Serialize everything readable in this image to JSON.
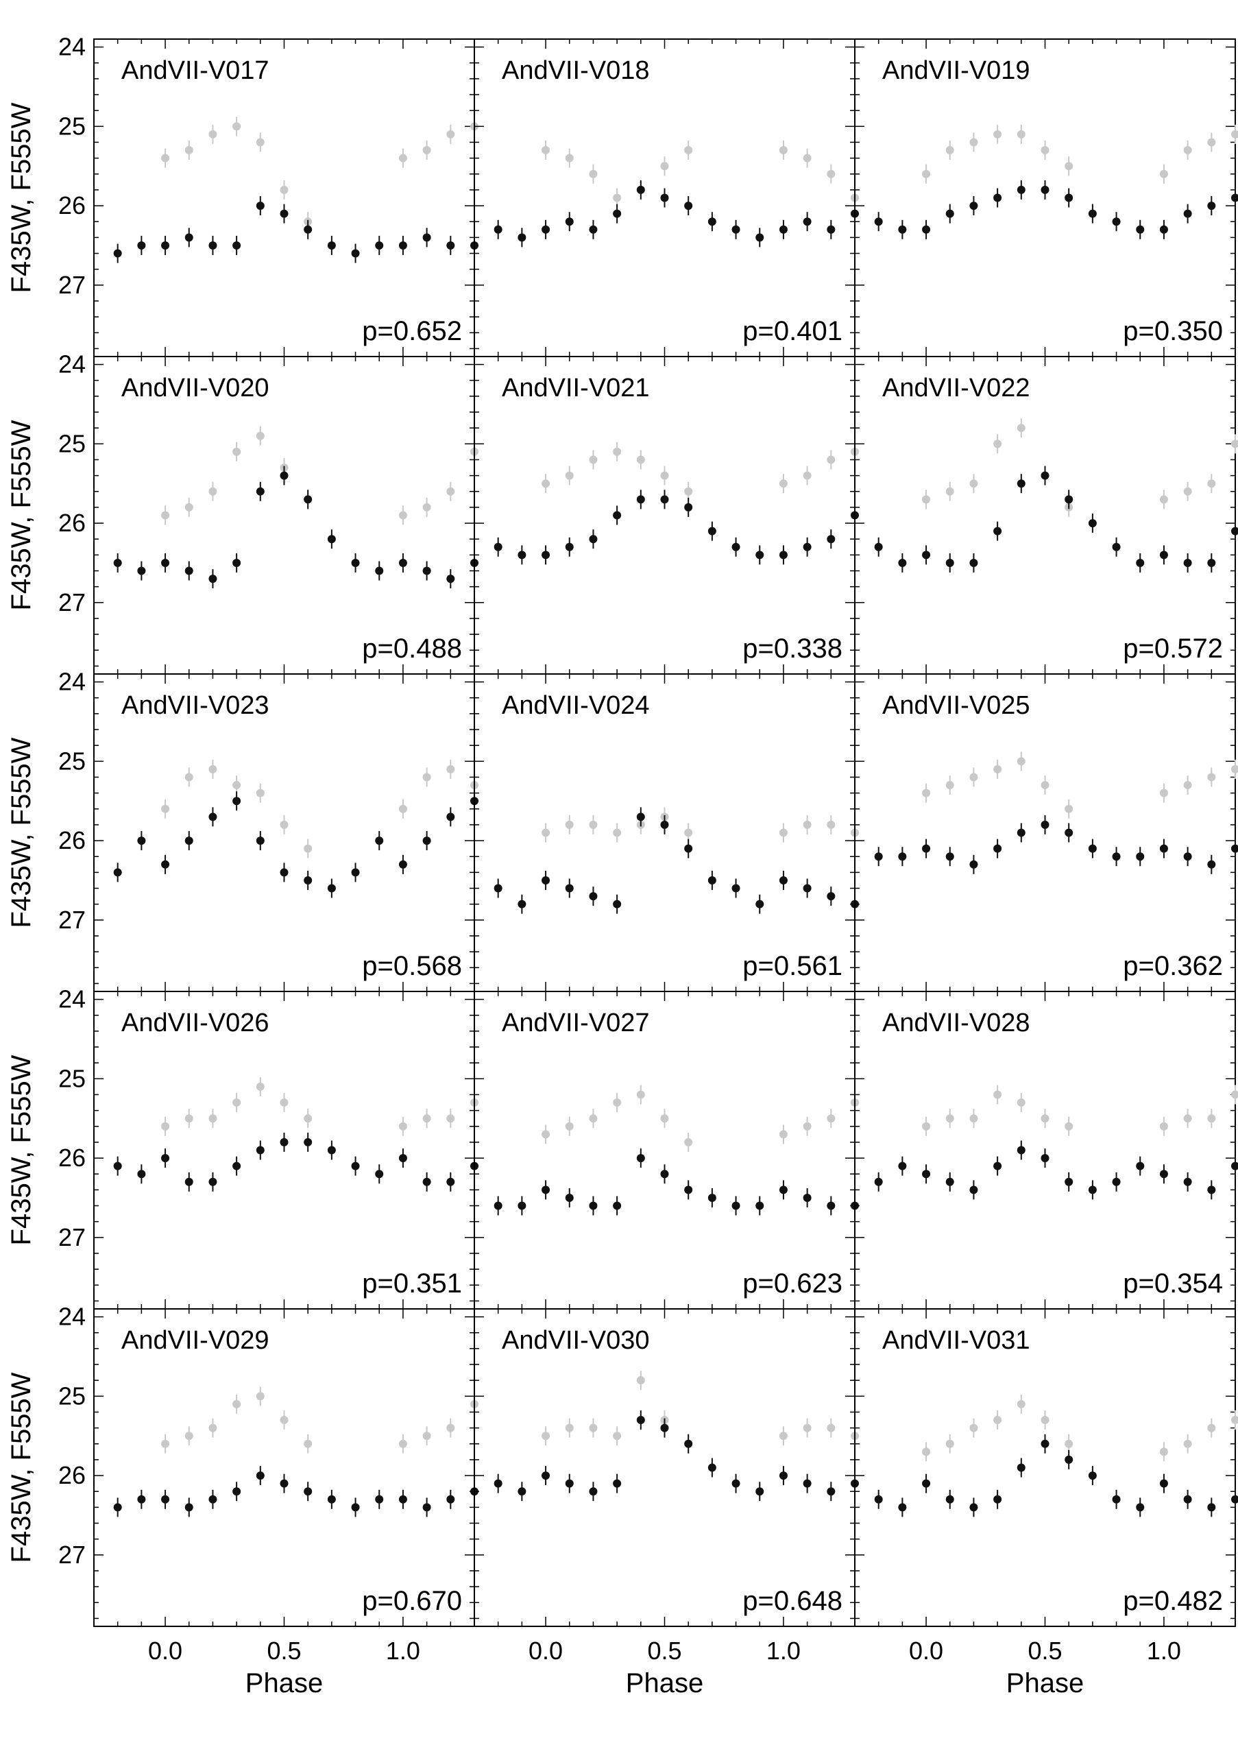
{
  "figure": {
    "y_axis_label": "F435W, F555W",
    "x_axis_label": "Phase",
    "x_tick_labels": [
      "0.0",
      "0.5",
      "1.0"
    ],
    "y_tick_labels": [
      "24",
      "25",
      "26",
      "27"
    ],
    "colors": {
      "f435w": "#c8c8c8",
      "f555w": "#111111",
      "frame": "#000000"
    }
  },
  "chart_data": {
    "type": "scatter",
    "description_of_series": [
      "F435W (grey points)",
      "F555W (black points)"
    ],
    "xlim": [
      -0.3,
      1.3
    ],
    "ylim": [
      27.9,
      23.9
    ],
    "y_inverted": true,
    "grid": false,
    "layout": "5 rows x 3 columns of light-curve panels",
    "panels": [
      {
        "star": "AndVII-V017",
        "period_label": "p=0.652",
        "period": 0.652,
        "f435w": {
          "phase": [
            0.0,
            0.1,
            0.2,
            0.3,
            0.4,
            0.5,
            0.6
          ],
          "mag": [
            25.4,
            25.3,
            25.1,
            25.0,
            25.2,
            25.8,
            26.2
          ]
        },
        "f555w": {
          "phase": [
            0.0,
            0.1,
            0.2,
            0.3,
            0.4,
            0.5,
            0.6,
            0.7,
            0.8,
            0.9
          ],
          "mag": [
            26.5,
            26.4,
            26.5,
            26.5,
            26.0,
            26.1,
            26.3,
            26.5,
            26.6,
            26.5
          ]
        }
      },
      {
        "star": "AndVII-V018",
        "period_label": "p=0.401",
        "period": 0.401,
        "f435w": {
          "phase": [
            0.0,
            0.1,
            0.2,
            0.3,
            0.4,
            0.5,
            0.6
          ],
          "mag": [
            25.3,
            25.4,
            25.6,
            25.9,
            25.8,
            25.5,
            25.3
          ]
        },
        "f555w": {
          "phase": [
            0.0,
            0.1,
            0.2,
            0.3,
            0.4,
            0.5,
            0.6,
            0.7,
            0.8,
            0.9
          ],
          "mag": [
            26.3,
            26.2,
            26.3,
            26.1,
            25.8,
            25.9,
            26.0,
            26.2,
            26.3,
            26.4
          ]
        }
      },
      {
        "star": "AndVII-V019",
        "period_label": "p=0.350",
        "period": 0.35,
        "f435w": {
          "phase": [
            0.0,
            0.1,
            0.2,
            0.3,
            0.4,
            0.5,
            0.6
          ],
          "mag": [
            25.6,
            25.3,
            25.2,
            25.1,
            25.1,
            25.3,
            25.5
          ]
        },
        "f555w": {
          "phase": [
            0.0,
            0.1,
            0.2,
            0.3,
            0.4,
            0.5,
            0.6,
            0.7,
            0.8,
            0.9
          ],
          "mag": [
            26.3,
            26.1,
            26.0,
            25.9,
            25.8,
            25.8,
            25.9,
            26.1,
            26.2,
            26.3
          ]
        }
      },
      {
        "star": "AndVII-V020",
        "period_label": "p=0.488",
        "period": 0.488,
        "f435w": {
          "phase": [
            0.0,
            0.1,
            0.2,
            0.3,
            0.4,
            0.5,
            0.6
          ],
          "mag": [
            25.9,
            25.8,
            25.6,
            25.1,
            24.9,
            25.3,
            25.7
          ]
        },
        "f555w": {
          "phase": [
            0.0,
            0.1,
            0.2,
            0.3,
            0.4,
            0.5,
            0.6,
            0.7,
            0.8,
            0.9
          ],
          "mag": [
            26.5,
            26.6,
            26.7,
            26.5,
            25.6,
            25.4,
            25.7,
            26.2,
            26.5,
            26.6
          ]
        }
      },
      {
        "star": "AndVII-V021",
        "period_label": "p=0.338",
        "period": 0.338,
        "f435w": {
          "phase": [
            0.0,
            0.1,
            0.2,
            0.3,
            0.4,
            0.5,
            0.6
          ],
          "mag": [
            25.5,
            25.4,
            25.2,
            25.1,
            25.2,
            25.4,
            25.6
          ]
        },
        "f555w": {
          "phase": [
            0.0,
            0.1,
            0.2,
            0.3,
            0.4,
            0.5,
            0.6,
            0.7,
            0.8,
            0.9
          ],
          "mag": [
            26.4,
            26.3,
            26.2,
            25.9,
            25.7,
            25.7,
            25.8,
            26.1,
            26.3,
            26.4
          ]
        }
      },
      {
        "star": "AndVII-V022",
        "period_label": "p=0.572",
        "period": 0.572,
        "f435w": {
          "phase": [
            0.0,
            0.1,
            0.2,
            0.3,
            0.4,
            0.5,
            0.6
          ],
          "mag": [
            25.7,
            25.6,
            25.5,
            25.0,
            24.8,
            25.4,
            25.8
          ]
        },
        "f555w": {
          "phase": [
            0.0,
            0.1,
            0.2,
            0.3,
            0.4,
            0.5,
            0.6,
            0.7,
            0.8,
            0.9
          ],
          "mag": [
            26.4,
            26.5,
            26.5,
            26.1,
            25.5,
            25.4,
            25.7,
            26.0,
            26.3,
            26.5
          ]
        }
      },
      {
        "star": "AndVII-V023",
        "period_label": "p=0.568",
        "period": 0.568,
        "f435w": {
          "phase": [
            0.0,
            0.1,
            0.2,
            0.3,
            0.4,
            0.5,
            0.6
          ],
          "mag": [
            25.6,
            25.2,
            25.1,
            25.3,
            25.4,
            25.8,
            26.1
          ]
        },
        "f555w": {
          "phase": [
            0.0,
            0.1,
            0.2,
            0.3,
            0.4,
            0.5,
            0.6,
            0.7,
            0.8,
            0.9
          ],
          "mag": [
            26.3,
            26.0,
            25.7,
            25.5,
            26.0,
            26.4,
            26.5,
            26.6,
            26.4,
            26.0
          ]
        }
      },
      {
        "star": "AndVII-V024",
        "period_label": "p=0.561",
        "period": 0.561,
        "f435w": {
          "phase": [
            0.0,
            0.1,
            0.2,
            0.3,
            0.4,
            0.5,
            0.6
          ],
          "mag": [
            25.9,
            25.8,
            25.8,
            25.9,
            25.8,
            25.7,
            25.9
          ]
        },
        "f555w": {
          "phase": [
            0.0,
            0.1,
            0.2,
            0.3,
            0.4,
            0.5,
            0.6,
            0.7,
            0.8,
            0.9
          ],
          "mag": [
            26.5,
            26.6,
            26.7,
            26.8,
            25.7,
            25.8,
            26.1,
            26.5,
            26.6,
            26.8
          ]
        }
      },
      {
        "star": "AndVII-V025",
        "period_label": "p=0.362",
        "period": 0.362,
        "f435w": {
          "phase": [
            0.0,
            0.1,
            0.2,
            0.3,
            0.4,
            0.5,
            0.6
          ],
          "mag": [
            25.4,
            25.3,
            25.2,
            25.1,
            25.0,
            25.3,
            25.6
          ]
        },
        "f555w": {
          "phase": [
            0.0,
            0.1,
            0.2,
            0.3,
            0.4,
            0.5,
            0.6,
            0.7,
            0.8,
            0.9
          ],
          "mag": [
            26.1,
            26.2,
            26.3,
            26.1,
            25.9,
            25.8,
            25.9,
            26.1,
            26.2,
            26.2
          ]
        }
      },
      {
        "star": "AndVII-V026",
        "period_label": "p=0.351",
        "period": 0.351,
        "f435w": {
          "phase": [
            0.0,
            0.1,
            0.2,
            0.3,
            0.4,
            0.5,
            0.6
          ],
          "mag": [
            25.6,
            25.5,
            25.5,
            25.3,
            25.1,
            25.3,
            25.5
          ]
        },
        "f555w": {
          "phase": [
            0.0,
            0.1,
            0.2,
            0.3,
            0.4,
            0.5,
            0.6,
            0.7,
            0.8,
            0.9
          ],
          "mag": [
            26.0,
            26.3,
            26.3,
            26.1,
            25.9,
            25.8,
            25.8,
            25.9,
            26.1,
            26.2
          ]
        }
      },
      {
        "star": "AndVII-V027",
        "period_label": "p=0.623",
        "period": 0.623,
        "f435w": {
          "phase": [
            0.0,
            0.1,
            0.2,
            0.3,
            0.4,
            0.5,
            0.6
          ],
          "mag": [
            25.7,
            25.6,
            25.5,
            25.3,
            25.2,
            25.5,
            25.8
          ]
        },
        "f555w": {
          "phase": [
            0.0,
            0.1,
            0.2,
            0.3,
            0.4,
            0.5,
            0.6,
            0.7,
            0.8,
            0.9
          ],
          "mag": [
            26.4,
            26.5,
            26.6,
            26.6,
            26.0,
            26.2,
            26.4,
            26.5,
            26.6,
            26.6
          ]
        }
      },
      {
        "star": "AndVII-V028",
        "period_label": "p=0.354",
        "period": 0.354,
        "f435w": {
          "phase": [
            0.0,
            0.1,
            0.2,
            0.3,
            0.4,
            0.5,
            0.6
          ],
          "mag": [
            25.6,
            25.5,
            25.5,
            25.2,
            25.3,
            25.5,
            25.6
          ]
        },
        "f555w": {
          "phase": [
            0.0,
            0.1,
            0.2,
            0.3,
            0.4,
            0.5,
            0.6,
            0.7,
            0.8,
            0.9
          ],
          "mag": [
            26.2,
            26.3,
            26.4,
            26.1,
            25.9,
            26.0,
            26.3,
            26.4,
            26.3,
            26.1
          ]
        }
      },
      {
        "star": "AndVII-V029",
        "period_label": "p=0.670",
        "period": 0.67,
        "f435w": {
          "phase": [
            0.0,
            0.1,
            0.2,
            0.3,
            0.4,
            0.5,
            0.6
          ],
          "mag": [
            25.6,
            25.5,
            25.4,
            25.1,
            25.0,
            25.3,
            25.6
          ]
        },
        "f555w": {
          "phase": [
            0.0,
            0.1,
            0.2,
            0.3,
            0.4,
            0.5,
            0.6,
            0.7,
            0.8,
            0.9
          ],
          "mag": [
            26.3,
            26.4,
            26.3,
            26.2,
            26.0,
            26.1,
            26.2,
            26.3,
            26.4,
            26.3
          ]
        }
      },
      {
        "star": "AndVII-V030",
        "period_label": "p=0.648",
        "period": 0.648,
        "f435w": {
          "phase": [
            0.0,
            0.1,
            0.2,
            0.3,
            0.4,
            0.5,
            0.6
          ],
          "mag": [
            25.5,
            25.4,
            25.4,
            25.5,
            24.8,
            25.3,
            25.6
          ]
        },
        "f555w": {
          "phase": [
            0.0,
            0.1,
            0.2,
            0.3,
            0.4,
            0.5,
            0.6,
            0.7,
            0.8,
            0.9
          ],
          "mag": [
            26.0,
            26.1,
            26.2,
            26.1,
            25.3,
            25.4,
            25.6,
            25.9,
            26.1,
            26.2
          ]
        }
      },
      {
        "star": "AndVII-V031",
        "period_label": "p=0.482",
        "period": 0.482,
        "f435w": {
          "phase": [
            0.0,
            0.1,
            0.2,
            0.3,
            0.4,
            0.5,
            0.6
          ],
          "mag": [
            25.7,
            25.6,
            25.4,
            25.3,
            25.1,
            25.3,
            25.6
          ]
        },
        "f555w": {
          "phase": [
            0.0,
            0.1,
            0.2,
            0.3,
            0.4,
            0.5,
            0.6,
            0.7,
            0.8,
            0.9
          ],
          "mag": [
            26.1,
            26.3,
            26.4,
            26.3,
            25.9,
            25.6,
            25.8,
            26.0,
            26.3,
            26.4
          ]
        }
      }
    ]
  }
}
